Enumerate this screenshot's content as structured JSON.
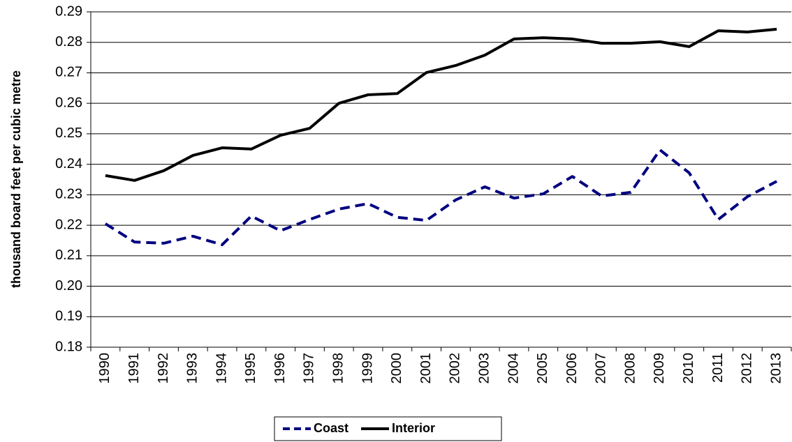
{
  "chart_data": {
    "type": "line",
    "y_label": "thousand board feet per cubic metre",
    "categories": [
      "1990",
      "1991",
      "1992",
      "1993",
      "1994",
      "1995",
      "1996",
      "1997",
      "1998",
      "1999",
      "2000",
      "2001",
      "2002",
      "2003",
      "2004",
      "2005",
      "2006",
      "2007",
      "2008",
      "2009",
      "2010",
      "2011",
      "2012",
      "2013"
    ],
    "series": [
      {
        "name": "Coast",
        "color": "#000080",
        "style": "dashed",
        "values": [
          0.2205,
          0.2145,
          0.2141,
          0.2164,
          0.2136,
          0.223,
          0.2182,
          0.2219,
          0.2253,
          0.2271,
          0.2226,
          0.2216,
          0.2283,
          0.2326,
          0.2289,
          0.2303,
          0.236,
          0.2296,
          0.2308,
          0.2447,
          0.2372,
          0.2219,
          0.2294,
          0.2344
        ]
      },
      {
        "name": "Interior",
        "color": "#000000",
        "style": "solid",
        "values": [
          0.2363,
          0.2347,
          0.2379,
          0.2429,
          0.2454,
          0.245,
          0.2495,
          0.2518,
          0.26,
          0.2628,
          0.2632,
          0.2701,
          0.2724,
          0.2758,
          0.2811,
          0.2815,
          0.2811,
          0.2797,
          0.2797,
          0.2802,
          0.2786,
          0.2838,
          0.2834,
          0.2843
        ]
      }
    ],
    "ylim": [
      0.18,
      0.29
    ],
    "yticks": [
      0.18,
      0.19,
      {
        "value": 0.2,
        "label": "0.20"
      },
      0.21,
      0.22,
      0.23,
      0.24,
      0.25,
      0.26,
      0.27,
      0.28,
      0.29
    ],
    "grid": true,
    "legend": "bottom"
  }
}
